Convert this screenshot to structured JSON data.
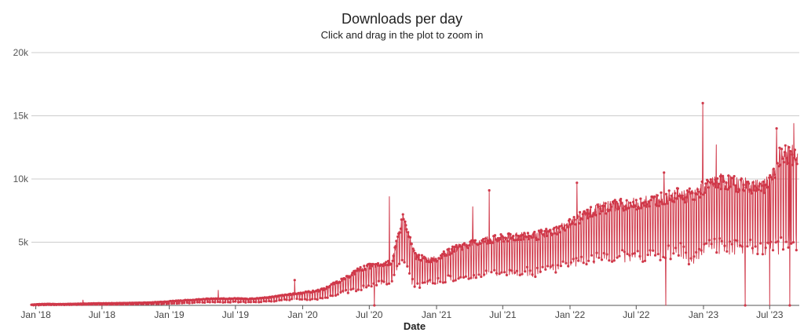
{
  "chart_data": {
    "type": "line",
    "title": "Downloads per day",
    "subtitle": "Click and drag in the plot to zoom in",
    "xlabel": "Date",
    "ylabel": "",
    "ylim": [
      0,
      20000
    ],
    "grid": true,
    "color": "#d0394a",
    "y_ticks": [
      {
        "value": 0,
        "label": ""
      },
      {
        "value": 5000,
        "label": "5k"
      },
      {
        "value": 10000,
        "label": "10k"
      },
      {
        "value": 15000,
        "label": "15k"
      },
      {
        "value": 20000,
        "label": "20k"
      }
    ],
    "x_ticks": [
      {
        "date": "2018-01-01",
        "label": "Jan '18"
      },
      {
        "date": "2018-07-01",
        "label": "Jul '18"
      },
      {
        "date": "2019-01-01",
        "label": "Jan '19"
      },
      {
        "date": "2019-07-01",
        "label": "Jul '19"
      },
      {
        "date": "2020-01-01",
        "label": "Jan '20"
      },
      {
        "date": "2020-07-01",
        "label": "Jul '20"
      },
      {
        "date": "2021-01-01",
        "label": "Jan '21"
      },
      {
        "date": "2021-07-01",
        "label": "Jul '21"
      },
      {
        "date": "2022-01-01",
        "label": "Jan '22"
      },
      {
        "date": "2022-07-01",
        "label": "Jul '22"
      },
      {
        "date": "2023-01-01",
        "label": "Jan '23"
      },
      {
        "date": "2023-07-01",
        "label": "Jul '23"
      }
    ],
    "xlim": [
      "2017-12-20",
      "2023-09-20"
    ],
    "series": [
      {
        "name": "",
        "x": [
          "2017-12-20",
          "2018-01-01",
          "2018-02-01",
          "2018-03-01",
          "2018-04-01",
          "2018-05-01",
          "2018-06-01",
          "2018-07-01",
          "2018-08-01",
          "2018-09-01",
          "2018-10-01",
          "2018-11-01",
          "2018-12-01",
          "2019-01-01",
          "2019-02-01",
          "2019-03-01",
          "2019-04-01",
          "2019-05-01",
          "2019-06-01",
          "2019-07-01",
          "2019-08-01",
          "2019-09-01",
          "2019-10-01",
          "2019-11-01",
          "2019-12-01",
          "2020-01-01",
          "2020-02-01",
          "2020-03-01",
          "2020-04-01",
          "2020-05-01",
          "2020-06-01",
          "2020-07-01",
          "2020-08-01",
          "2020-09-01",
          "2020-10-01",
          "2020-11-01",
          "2020-12-01",
          "2021-01-01",
          "2021-02-01",
          "2021-03-01",
          "2021-04-01",
          "2021-05-01",
          "2021-06-01",
          "2021-07-01",
          "2021-08-01",
          "2021-09-01",
          "2021-10-01",
          "2021-11-01",
          "2021-12-01",
          "2022-01-01",
          "2022-02-01",
          "2022-03-01",
          "2022-04-01",
          "2022-05-01",
          "2022-06-01",
          "2022-07-01",
          "2022-08-01",
          "2022-09-01",
          "2022-10-01",
          "2022-11-01",
          "2022-12-01",
          "2023-01-01",
          "2023-02-01",
          "2023-03-01",
          "2023-04-01",
          "2023-05-01",
          "2023-06-01",
          "2023-07-01",
          "2023-08-01",
          "2023-09-15"
        ],
        "high": [
          50,
          80,
          120,
          90,
          110,
          130,
          150,
          160,
          170,
          180,
          200,
          220,
          260,
          320,
          380,
          420,
          500,
          520,
          520,
          560,
          500,
          560,
          640,
          760,
          880,
          1000,
          1100,
          1300,
          1800,
          2200,
          2800,
          3100,
          3200,
          3400,
          7000,
          4000,
          3600,
          3700,
          4200,
          4600,
          4800,
          5000,
          5200,
          5300,
          5400,
          5500,
          5500,
          5800,
          6000,
          6500,
          7000,
          7400,
          7700,
          7900,
          8000,
          8000,
          8200,
          8400,
          8600,
          8800,
          8600,
          9300,
          9800,
          9800,
          9600,
          9500,
          9400,
          9600,
          12000,
          11800
        ],
        "low": [
          10,
          20,
          40,
          40,
          50,
          60,
          70,
          70,
          80,
          90,
          100,
          110,
          120,
          150,
          180,
          200,
          250,
          260,
          260,
          280,
          250,
          280,
          320,
          400,
          480,
          500,
          500,
          600,
          900,
          1100,
          1300,
          1600,
          1800,
          1900,
          4000,
          1500,
          1800,
          1900,
          2100,
          2300,
          2400,
          2500,
          2600,
          2600,
          2700,
          2700,
          2600,
          2800,
          3000,
          3400,
          3500,
          3700,
          3800,
          3900,
          3900,
          3900,
          4000,
          4100,
          4200,
          4400,
          3600,
          4500,
          4700,
          4700,
          4600,
          4600,
          4500,
          4600,
          4900,
          5000
        ]
      }
    ],
    "peaks": [
      {
        "date": "2018-05-10",
        "value": 420
      },
      {
        "date": "2019-05-15",
        "value": 1200
      },
      {
        "date": "2019-12-10",
        "value": 2000
      },
      {
        "date": "2020-08-25",
        "value": 8600
      },
      {
        "date": "2021-04-10",
        "value": 7800
      },
      {
        "date": "2021-05-25",
        "value": 9100
      },
      {
        "date": "2022-01-20",
        "value": 9700
      },
      {
        "date": "2022-09-15",
        "value": 10500
      },
      {
        "date": "2022-12-30",
        "value": 16000
      },
      {
        "date": "2023-02-05",
        "value": 12700
      },
      {
        "date": "2023-07-20",
        "value": 14000
      },
      {
        "date": "2023-09-05",
        "value": 14400
      }
    ],
    "dips": [
      {
        "date": "2020-07-15",
        "value": 0
      },
      {
        "date": "2022-09-20",
        "value": 0
      },
      {
        "date": "2023-04-25",
        "value": 0
      },
      {
        "date": "2023-07-01",
        "value": 0
      },
      {
        "date": "2023-08-25",
        "value": 0
      }
    ]
  }
}
